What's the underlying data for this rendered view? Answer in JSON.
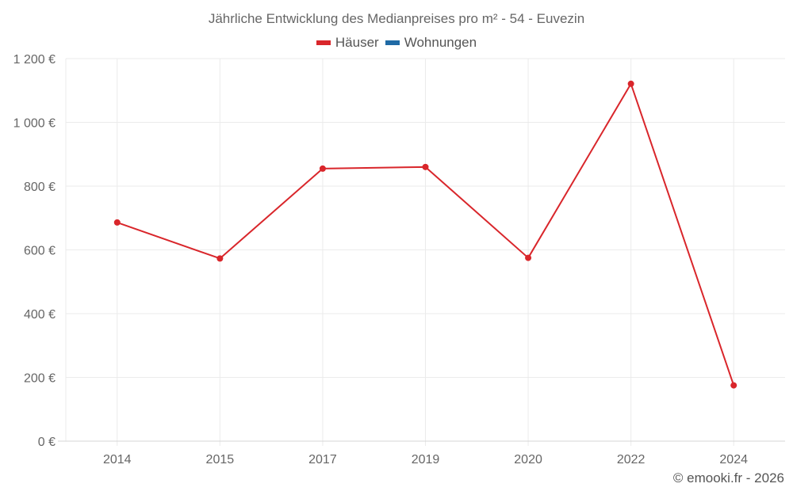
{
  "title": "Jährliche Entwicklung des Medianpreises pro m² - 54 - Euvezin",
  "legend": [
    {
      "label": "Häuser",
      "color": "#d9262b"
    },
    {
      "label": "Wohnungen",
      "color": "#1f6aa5"
    }
  ],
  "copyright": "© emooki.fr - 2026",
  "colors": {
    "grid": "#ebebeb",
    "axis": "#d6d6d6",
    "tick_text": "#666666"
  },
  "chart_data": {
    "type": "line",
    "title": "Jährliche Entwicklung des Medianpreises pro m² - 54 - Euvezin",
    "xlabel": "",
    "ylabel": "",
    "categories": [
      "2014",
      "2015",
      "2017",
      "2019",
      "2020",
      "2022",
      "2024"
    ],
    "series": [
      {
        "name": "Häuser",
        "color": "#d9262b",
        "values": [
          686,
          573,
          855,
          860,
          575,
          1121,
          175
        ]
      },
      {
        "name": "Wohnungen",
        "color": "#1f6aa5",
        "values": []
      }
    ],
    "ylim": [
      0,
      1200
    ],
    "yticks": [
      0,
      200,
      400,
      600,
      800,
      1000,
      1200
    ],
    "ytick_labels": [
      "0 €",
      "200 €",
      "400 €",
      "600 €",
      "800 €",
      "1 000 €",
      "1 200 €"
    ],
    "grid": true,
    "legend_position": "top"
  }
}
